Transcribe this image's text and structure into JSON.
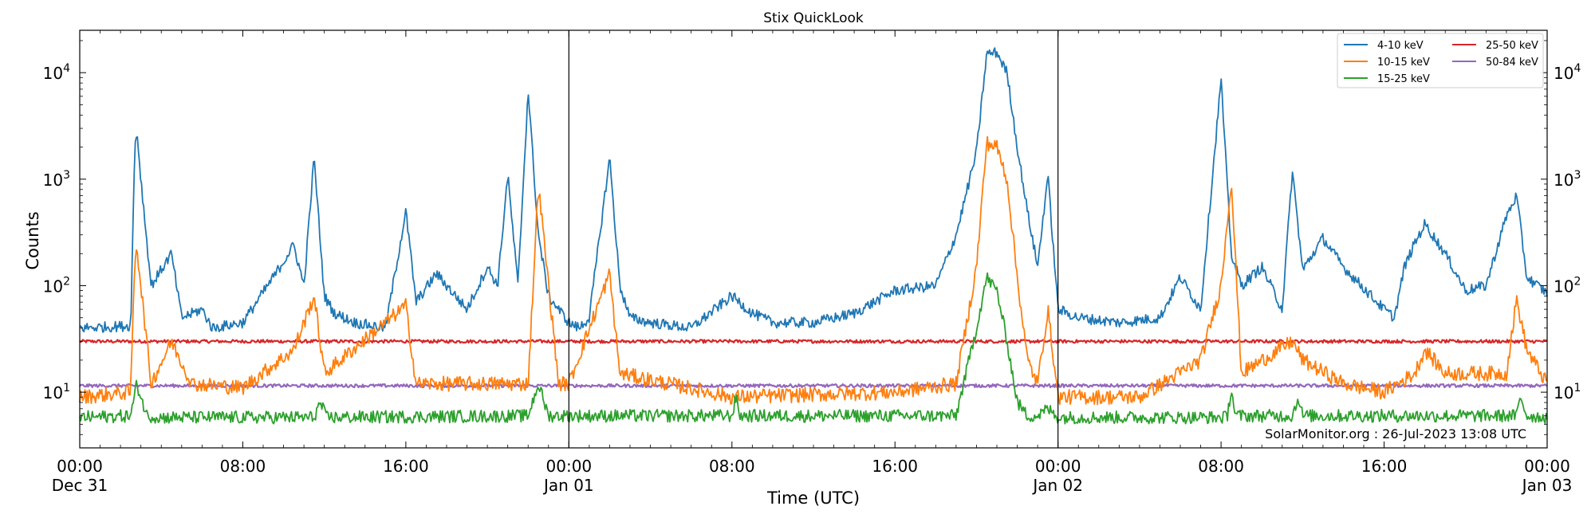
{
  "chart_data": {
    "type": "line",
    "title": "Stix QuickLook",
    "xlabel": "Time (UTC)",
    "ylabel": "Counts",
    "yscale": "log",
    "ylim": [
      3,
      25000
    ],
    "xlim_hours": [
      0,
      72
    ],
    "x_ticks": [
      {
        "hour": 0,
        "time": "00:00",
        "date": "Dec 31"
      },
      {
        "hour": 8,
        "time": "08:00",
        "date": ""
      },
      {
        "hour": 16,
        "time": "16:00",
        "date": ""
      },
      {
        "hour": 24,
        "time": "00:00",
        "date": "Jan 01"
      },
      {
        "hour": 32,
        "time": "08:00",
        "date": ""
      },
      {
        "hour": 40,
        "time": "16:00",
        "date": ""
      },
      {
        "hour": 48,
        "time": "00:00",
        "date": "Jan 02"
      },
      {
        "hour": 56,
        "time": "08:00",
        "date": ""
      },
      {
        "hour": 64,
        "time": "16:00",
        "date": ""
      },
      {
        "hour": 72,
        "time": "00:00",
        "date": "Jan 03"
      }
    ],
    "y_ticks": [
      {
        "value": 10,
        "base": "10",
        "exp": "1"
      },
      {
        "value": 100,
        "base": "10",
        "exp": "2"
      },
      {
        "value": 1000,
        "base": "10",
        "exp": "3"
      },
      {
        "value": 10000,
        "base": "10",
        "exp": "4"
      }
    ],
    "day_boundaries_hours": [
      24,
      48
    ],
    "grid": false,
    "legend_position": "top-right",
    "annotation": "SolarMonitor.org : 26-Jul-2023 13:08 UTC",
    "series": [
      {
        "name": "4-10 keV",
        "color": "#1f77b4",
        "baseline": 40,
        "x": [
          0,
          2.5,
          2.7,
          2.8,
          3.0,
          3.5,
          4.5,
          5.0,
          6.0,
          6.5,
          8.0,
          9.5,
          10.5,
          11.0,
          11.5,
          12.0,
          12.5,
          13.5,
          15.0,
          16.0,
          16.5,
          17.5,
          19.0,
          20.0,
          20.5,
          21.0,
          21.5,
          22.0,
          22.5,
          23.0,
          23.5,
          24.0,
          24.5,
          25.0,
          26.0,
          26.5,
          27.0,
          28.0,
          30.0,
          32.0,
          33.0,
          34.0,
          36.0,
          38.0,
          40.0,
          42.0,
          43.0,
          44.0,
          44.5,
          45.0,
          45.5,
          46.0,
          46.5,
          47.0,
          47.5,
          48.0,
          49.0,
          51.0,
          53.0,
          54.0,
          55.0,
          56.0,
          56.5,
          57.0,
          58.0,
          59.0,
          59.5,
          60.0,
          61.0,
          62.0,
          64.0,
          64.5,
          65.0,
          65.5,
          66.0,
          67.0,
          68.0,
          69.0,
          70.0,
          70.5,
          71.0,
          72.0
        ],
        "values": [
          40,
          42,
          2000,
          2900,
          1000,
          100,
          200,
          50,
          60,
          40,
          45,
          120,
          240,
          100,
          1600,
          80,
          55,
          45,
          40,
          500,
          70,
          130,
          60,
          150,
          100,
          1100,
          100,
          6900,
          300,
          80,
          60,
          45,
          40,
          50,
          1600,
          100,
          50,
          45,
          40,
          80,
          55,
          45,
          45,
          55,
          90,
          100,
          300,
          1800,
          15000,
          15500,
          10000,
          2000,
          500,
          150,
          1100,
          60,
          50,
          45,
          50,
          120,
          60,
          8700,
          200,
          100,
          150,
          60,
          1200,
          140,
          280,
          150,
          60,
          50,
          150,
          250,
          380,
          200,
          90,
          100,
          450,
          700,
          120,
          85
        ]
      },
      {
        "name": "10-15 keV",
        "color": "#ff7f0e",
        "baseline": 9,
        "x": [
          0,
          2.5,
          2.7,
          2.8,
          3.0,
          3.5,
          4.5,
          5.5,
          8.0,
          10.5,
          11.5,
          12.0,
          16.0,
          16.5,
          22.0,
          22.5,
          23.5,
          24.0,
          26.0,
          26.5,
          32.0,
          40.0,
          43.0,
          44.0,
          44.5,
          45.0,
          45.5,
          46.0,
          46.5,
          47.0,
          47.5,
          48.0,
          52.0,
          55.0,
          56.0,
          56.5,
          57.0,
          59.5,
          60.0,
          62.0,
          64.0,
          65.5,
          66.0,
          67.0,
          70.0,
          70.5,
          71.0,
          72.0
        ],
        "values": [
          9,
          10,
          180,
          240,
          100,
          12,
          30,
          12,
          11,
          25,
          80,
          15,
          65,
          12,
          12,
          900,
          12,
          12,
          130,
          15,
          9,
          10,
          12,
          150,
          2200,
          2000,
          1000,
          120,
          20,
          12,
          60,
          9,
          9,
          20,
          100,
          1000,
          15,
          30,
          20,
          12,
          10,
          15,
          25,
          15,
          15,
          75,
          25,
          12
        ]
      },
      {
        "name": "15-25 keV",
        "color": "#2ca02c",
        "baseline": 5.8,
        "x": [
          0,
          2.5,
          2.8,
          3.0,
          3.3,
          4.0,
          11.5,
          11.8,
          12.1,
          22.0,
          22.5,
          23.0,
          32.0,
          32.2,
          32.4,
          43.0,
          44.0,
          44.5,
          45.0,
          45.5,
          46.0,
          46.5,
          47.0,
          47.5,
          48.0,
          56.3,
          56.5,
          56.7,
          59.5,
          59.8,
          60.0,
          70.5,
          70.7,
          71.0,
          72.0
        ],
        "values": [
          5.8,
          6,
          12,
          9,
          6,
          5.8,
          5.8,
          8,
          5.8,
          6,
          12,
          6,
          6,
          9,
          6,
          6,
          40,
          120,
          90,
          30,
          8,
          6,
          6,
          7,
          5.8,
          5.8,
          11,
          6,
          6,
          9,
          6,
          6,
          9,
          6,
          5.8
        ]
      },
      {
        "name": "25-50 keV",
        "color": "#d62728",
        "baseline": 30,
        "x": [
          0,
          72
        ],
        "values": [
          30,
          30
        ]
      },
      {
        "name": "50-84 keV",
        "color": "#9467bd",
        "baseline": 11.5,
        "x": [
          0,
          72
        ],
        "values": [
          11.5,
          11.5
        ]
      }
    ]
  }
}
